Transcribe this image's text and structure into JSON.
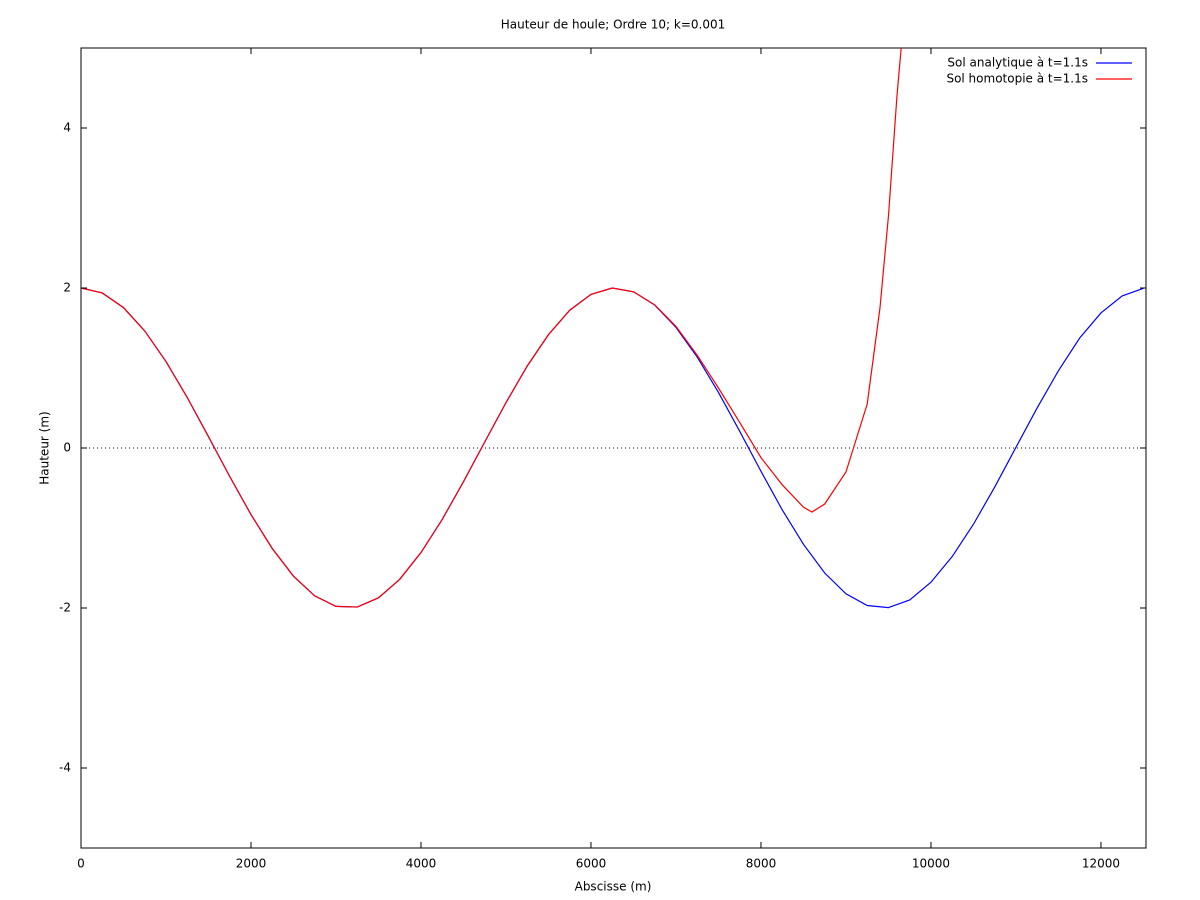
{
  "chart_data": {
    "type": "line",
    "title": "Hauteur de houle; Ordre 10; k=0.001",
    "xlabel": "Abscisse (m)",
    "ylabel": "Hauteur (m)",
    "xlim": [
      0,
      12530
    ],
    "ylim": [
      -5,
      5
    ],
    "xticks": [
      0,
      2000,
      4000,
      6000,
      8000,
      10000,
      12000
    ],
    "yticks": [
      -4,
      -2,
      0,
      2,
      4
    ],
    "zeroaxis": true,
    "legend": "top-right",
    "series": [
      {
        "name": "Sol analytique à t=1.1s",
        "color": "#0000ff",
        "x": [
          0,
          250,
          500,
          750,
          1000,
          1250,
          1500,
          1750,
          2000,
          2250,
          2500,
          2750,
          3000,
          3250,
          3500,
          3750,
          4000,
          4250,
          4500,
          4750,
          5000,
          5250,
          5500,
          5750,
          6000,
          6250,
          6500,
          6750,
          7000,
          7250,
          7500,
          7750,
          8000,
          8250,
          8500,
          8750,
          9000,
          9250,
          9500,
          9750,
          10000,
          10250,
          10500,
          10750,
          11000,
          11250,
          11500,
          11750,
          12000,
          12250,
          12500
        ],
        "values": [
          2.0,
          1.938,
          1.755,
          1.463,
          1.081,
          0.631,
          0.141,
          -0.356,
          -0.832,
          -1.256,
          -1.602,
          -1.849,
          -1.98,
          -1.988,
          -1.873,
          -1.641,
          -1.307,
          -0.893,
          -0.421,
          0.075,
          0.567,
          1.025,
          1.417,
          1.722,
          1.92,
          2.0,
          1.953,
          1.787,
          1.508,
          1.137,
          0.694,
          0.209,
          -0.291,
          -0.773,
          -1.204,
          -1.563,
          -1.822,
          -1.969,
          -1.995,
          -1.899,
          -1.678,
          -1.357,
          -0.953,
          -0.488,
          0.009,
          0.502,
          0.966,
          1.375,
          1.688,
          1.901,
          1.996
        ]
      },
      {
        "name": "Sol homotopie à t=1.1s",
        "color": "#ff0000",
        "x": [
          0,
          250,
          500,
          750,
          1000,
          1250,
          1500,
          1750,
          2000,
          2250,
          2500,
          2750,
          3000,
          3250,
          3500,
          3750,
          4000,
          4250,
          4500,
          4750,
          5000,
          5250,
          5500,
          5750,
          6000,
          6250,
          6500,
          6750,
          7000,
          7250,
          7500,
          7750,
          8000,
          8250,
          8500,
          8600,
          8750,
          9000,
          9250,
          9400,
          9500,
          9600,
          9650
        ],
        "values": [
          2.0,
          1.938,
          1.755,
          1.463,
          1.081,
          0.631,
          0.141,
          -0.356,
          -0.832,
          -1.256,
          -1.602,
          -1.849,
          -1.98,
          -1.988,
          -1.873,
          -1.641,
          -1.307,
          -0.893,
          -0.421,
          0.075,
          0.567,
          1.025,
          1.417,
          1.722,
          1.92,
          2.0,
          1.953,
          1.79,
          1.52,
          1.16,
          0.75,
          0.32,
          -0.12,
          -0.46,
          -0.74,
          -0.8,
          -0.7,
          -0.3,
          0.55,
          1.75,
          2.9,
          4.4,
          5.0
        ]
      }
    ]
  }
}
